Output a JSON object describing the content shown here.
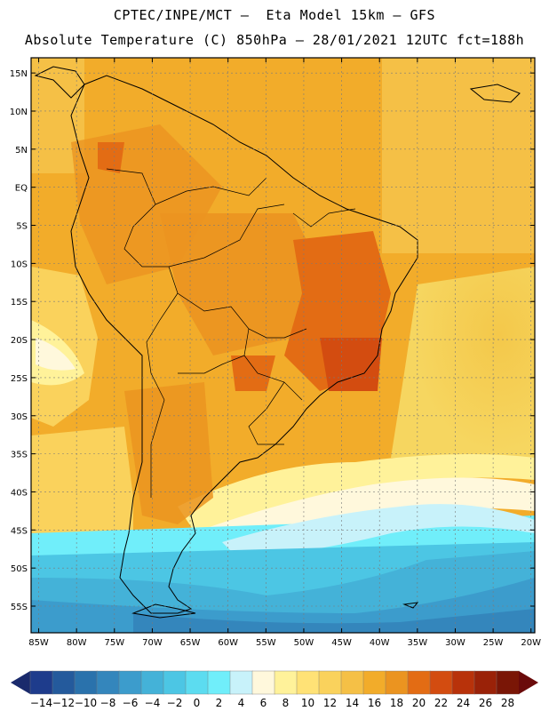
{
  "header": {
    "line1": "CPTEC/INPE/MCT –  Eta Model 15km – GFS",
    "line2": "Absolute Temperature (C) 850hPa – 28/01/2021 12UTC fct=188h"
  },
  "map": {
    "lat_labels": [
      "15N",
      "10N",
      "5N",
      "EQ",
      "5S",
      "10S",
      "15S",
      "20S",
      "25S",
      "30S",
      "35S",
      "40S",
      "45S",
      "50S",
      "55S"
    ],
    "lon_labels": [
      "85W",
      "80W",
      "75W",
      "70W",
      "65W",
      "60W",
      "55W",
      "50W",
      "45W",
      "40W",
      "35W",
      "30W",
      "25W",
      "20W"
    ],
    "lat_values": [
      15,
      10,
      5,
      0,
      -5,
      -10,
      -15,
      -20,
      -25,
      -30,
      -35,
      -40,
      -45,
      -50,
      -55
    ],
    "lon_values": [
      -85,
      -80,
      -75,
      -70,
      -65,
      -60,
      -55,
      -50,
      -45,
      -40,
      -35,
      -30,
      -25,
      -20
    ]
  },
  "colorbar": {
    "labels": [
      "-14",
      "-12",
      "-10",
      "-8",
      "-6",
      "-4",
      "-2",
      "0",
      "2",
      "4",
      "6",
      "8",
      "10",
      "12",
      "14",
      "16",
      "18",
      "20",
      "22",
      "24",
      "26",
      "28"
    ],
    "colors": [
      "#1e3c8c",
      "#245a9c",
      "#2a72ac",
      "#3486bc",
      "#3c9ccc",
      "#44b2d8",
      "#4cc6e4",
      "#5cdcf0",
      "#70eefa",
      "#c8f2fa",
      "#fff8dc",
      "#fff29a",
      "#ffe276",
      "#fad25c",
      "#f5c046",
      "#f2ac2a",
      "#eb9420",
      "#e36c14",
      "#d34c10",
      "#b8320a",
      "#9a2208",
      "#7a1606"
    ],
    "left_arrow_color": "#1a2a6c",
    "right_arrow_color": "#6a0a0a"
  }
}
